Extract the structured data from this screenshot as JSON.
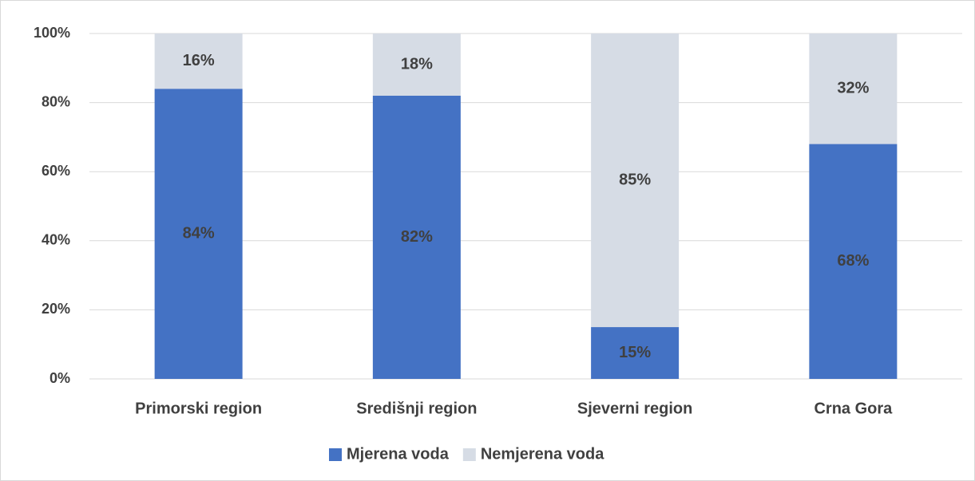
{
  "chart_data": {
    "type": "bar",
    "stacked": true,
    "categories": [
      "Primorski region",
      "Središnji region",
      "Sjeverni region",
      "Crna Gora"
    ],
    "series": [
      {
        "name": "Mjerena voda",
        "color": "#4472c4",
        "values": [
          84,
          82,
          15,
          68
        ],
        "value_labels": [
          "84%",
          "82%",
          "15%",
          "68%"
        ]
      },
      {
        "name": "Nemjerena voda",
        "color": "#d6dce5",
        "values": [
          16,
          18,
          85,
          32
        ],
        "value_labels": [
          "16%",
          "18%",
          "85%",
          "32%"
        ]
      }
    ],
    "ylim": [
      0,
      100
    ],
    "yticks": [
      {
        "value": 0,
        "label": "0%"
      },
      {
        "value": 20,
        "label": "20%"
      },
      {
        "value": 40,
        "label": "40%"
      },
      {
        "value": 60,
        "label": "60%"
      },
      {
        "value": 80,
        "label": "80%"
      },
      {
        "value": 100,
        "label": "100%"
      }
    ],
    "grid": true,
    "legend": "bottom"
  }
}
